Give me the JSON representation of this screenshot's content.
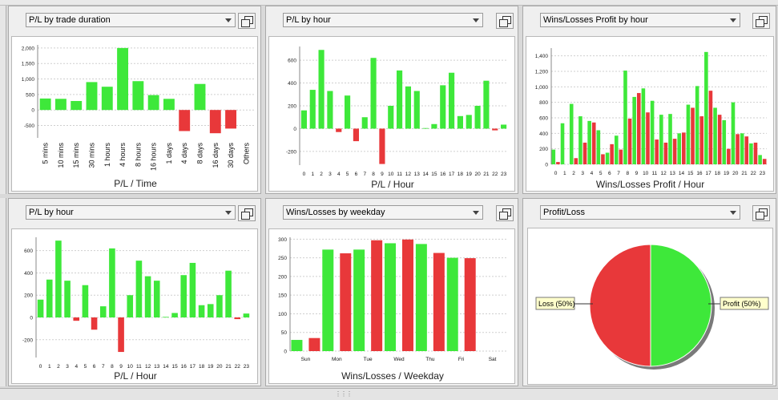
{
  "panels": [
    {
      "id": "p1",
      "title": "P/L by trade duration",
      "xlabel": "P/L / Time"
    },
    {
      "id": "p2",
      "title": "P/L by hour",
      "xlabel": "P/L / Hour"
    },
    {
      "id": "p3",
      "title": "Wins/Losses Profit by hour",
      "xlabel": "Wins/Losses Profit / Hour"
    },
    {
      "id": "p4",
      "title": "P/L by hour",
      "xlabel": "P/L / Hour"
    },
    {
      "id": "p5",
      "title": "Wins/Losses by weekday",
      "xlabel": "Wins/Losses / Weekday"
    },
    {
      "id": "p6",
      "title": "Profit/Loss",
      "xlabel": ""
    }
  ],
  "colors": {
    "gain": "#3ee83a",
    "loss": "#e8383a",
    "grid": "#cfcfcf"
  },
  "chart_data": [
    {
      "type": "bar",
      "categories": [
        "5 mins",
        "10 mins",
        "15 mins",
        "30 mins",
        "1 hours",
        "4 hours",
        "8 hours",
        "16 hours",
        "1 days",
        "4 days",
        "8 days",
        "16 days",
        "30 days",
        "Others"
      ],
      "values": [
        370,
        360,
        290,
        900,
        750,
        2000,
        930,
        480,
        360,
        -680,
        840,
        -750,
        -600,
        0
      ],
      "ylim": [
        -900,
        2100
      ],
      "yticks": [
        -500,
        0,
        500,
        1000,
        1500,
        2000
      ],
      "xlabel": "P/L / Time",
      "ylabel": "",
      "title": ""
    },
    {
      "type": "bar",
      "categories": [
        "0",
        "1",
        "2",
        "3",
        "4",
        "5",
        "6",
        "7",
        "8",
        "9",
        "10",
        "11",
        "12",
        "13",
        "14",
        "15",
        "16",
        "17",
        "18",
        "19",
        "20",
        "21",
        "22",
        "23"
      ],
      "values": [
        160,
        340,
        690,
        330,
        -30,
        290,
        -110,
        100,
        620,
        -310,
        200,
        510,
        370,
        330,
        5,
        40,
        380,
        490,
        110,
        120,
        200,
        420,
        -15,
        35
      ],
      "ylim": [
        -320,
        720
      ],
      "yticks": [
        -200,
        0,
        200,
        400,
        600
      ],
      "xlabel": "P/L / Hour",
      "ylabel": "",
      "title": ""
    },
    {
      "type": "bar",
      "categories": [
        "0",
        "1",
        "2",
        "3",
        "4",
        "5",
        "6",
        "7",
        "8",
        "9",
        "10",
        "11",
        "12",
        "13",
        "14",
        "15",
        "16",
        "17",
        "18",
        "19",
        "20",
        "21",
        "22",
        "23"
      ],
      "series": [
        {
          "values": [
            190,
            530,
            780,
            620,
            560,
            440,
            150,
            370,
            1210,
            870,
            980,
            820,
            640,
            650,
            400,
            770,
            1010,
            1450,
            730,
            570,
            800,
            400,
            270,
            120
          ]
        },
        {
          "values": [
            30,
            0,
            80,
            280,
            540,
            130,
            260,
            190,
            590,
            920,
            670,
            320,
            280,
            330,
            410,
            730,
            620,
            950,
            640,
            200,
            390,
            360,
            280,
            70
          ]
        }
      ],
      "ylim": [
        0,
        1500
      ],
      "yticks": [
        0,
        200,
        400,
        600,
        800,
        1000,
        1200,
        1400
      ],
      "xlabel": "Wins/Losses Profit / Hour",
      "ylabel": "",
      "title": ""
    },
    {
      "type": "bar",
      "categories": [
        "0",
        "1",
        "2",
        "3",
        "4",
        "5",
        "6",
        "7",
        "8",
        "9",
        "10",
        "11",
        "12",
        "13",
        "14",
        "15",
        "16",
        "17",
        "18",
        "19",
        "20",
        "21",
        "22",
        "23"
      ],
      "values": [
        160,
        340,
        690,
        330,
        -30,
        290,
        -110,
        100,
        620,
        -310,
        200,
        510,
        370,
        330,
        5,
        40,
        380,
        490,
        110,
        120,
        200,
        420,
        -15,
        35
      ],
      "ylim": [
        -360,
        720
      ],
      "yticks": [
        -200,
        0,
        200,
        400,
        600
      ],
      "xlabel": "P/L / Hour",
      "ylabel": "",
      "title": ""
    },
    {
      "type": "bar",
      "categories": [
        "Sun",
        "Mon",
        "Tue",
        "Wed",
        "Thu",
        "Fri",
        "Sat"
      ],
      "series": [
        {
          "values": [
            30,
            272,
            272,
            289,
            287,
            250,
            0
          ]
        },
        {
          "values": [
            35,
            262,
            297,
            299,
            263,
            249,
            0
          ]
        }
      ],
      "ylim": [
        0,
        305
      ],
      "yticks": [
        0,
        50,
        100,
        150,
        200,
        250,
        300
      ],
      "xlabel": "Wins/Losses / Weekday",
      "ylabel": "",
      "title": ""
    },
    {
      "type": "pie",
      "labels": [
        "Loss (50%)",
        "Profit (50%)"
      ],
      "values": [
        50,
        50
      ],
      "title": ""
    }
  ]
}
